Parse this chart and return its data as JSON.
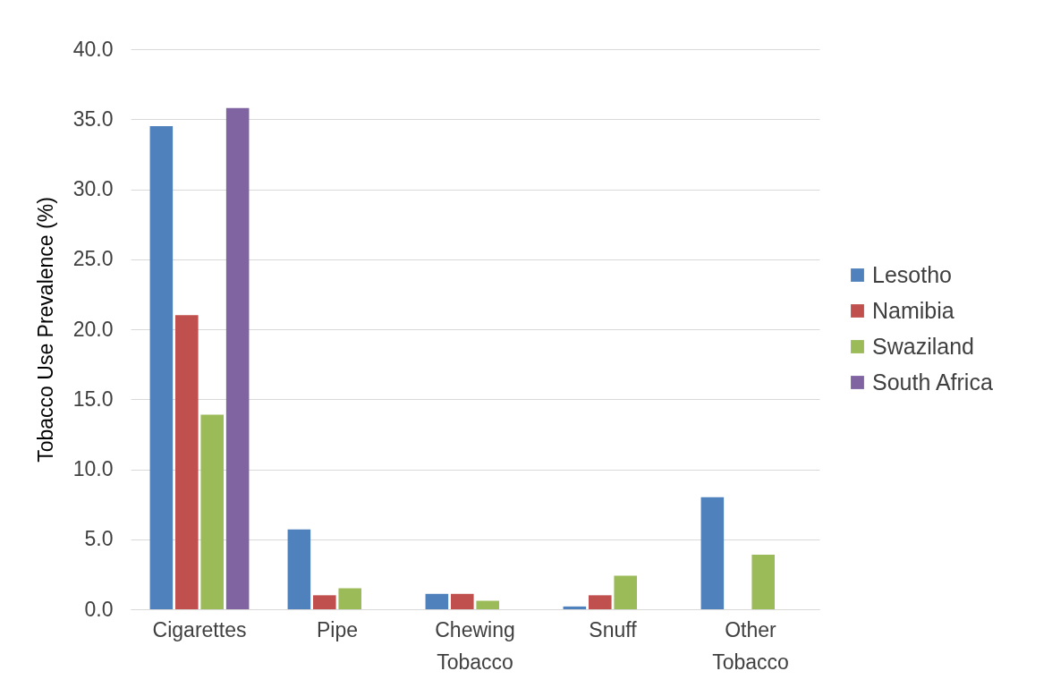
{
  "chart_data": {
    "type": "bar",
    "ylabel": "Tobacco Use Prevalence (%)",
    "categories": [
      "Cigarettes",
      "Pipe",
      "Chewing Tobacco",
      "Snuff",
      "Other Tobacco"
    ],
    "series": [
      {
        "name": "Lesotho",
        "color": "#4f81bd",
        "values": [
          34.5,
          5.7,
          1.1,
          0.2,
          8.0
        ]
      },
      {
        "name": "Namibia",
        "color": "#c0504d",
        "values": [
          21.0,
          1.0,
          1.1,
          1.0,
          null
        ]
      },
      {
        "name": "Swaziland",
        "color": "#9bbb59",
        "values": [
          13.9,
          1.5,
          0.6,
          2.4,
          3.9
        ]
      },
      {
        "name": "South Africa",
        "color": "#8064a2",
        "values": [
          35.8,
          null,
          null,
          null,
          null
        ]
      }
    ],
    "ylim": [
      0,
      40
    ],
    "yticks": [
      {
        "value": 0,
        "label": "0.0"
      },
      {
        "value": 5,
        "label": "5.0"
      },
      {
        "value": 10,
        "label": "10.0"
      },
      {
        "value": 15,
        "label": "15.0"
      },
      {
        "value": 20,
        "label": "20.0"
      },
      {
        "value": 25,
        "label": "25.0"
      },
      {
        "value": 30,
        "label": "30.0"
      },
      {
        "value": 35,
        "label": "35.0"
      },
      {
        "value": 40,
        "label": "40.0"
      }
    ],
    "grid": "y",
    "legend": "right"
  }
}
